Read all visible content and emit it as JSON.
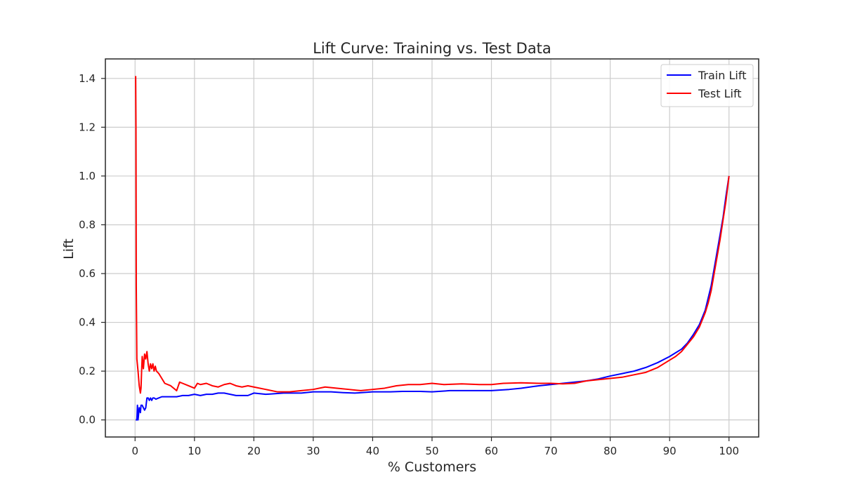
{
  "chart_data": {
    "type": "line",
    "title": "Lift Curve: Training vs. Test Data",
    "xlabel": "% Customers",
    "ylabel": "Lift",
    "xlim": [
      -5,
      105
    ],
    "ylim": [
      -0.07,
      1.48
    ],
    "xticks": [
      0,
      10,
      20,
      30,
      40,
      50,
      60,
      70,
      80,
      90,
      100
    ],
    "yticks": [
      0.0,
      0.2,
      0.4,
      0.6,
      0.8,
      1.0,
      1.2,
      1.4
    ],
    "grid": true,
    "legend_position": "top-right",
    "series": [
      {
        "name": "Train Lift",
        "color": "#0000ff",
        "x": [
          0.1,
          0.3,
          0.4,
          0.5,
          0.7,
          0.9,
          1.0,
          1.2,
          1.4,
          1.6,
          1.8,
          2.0,
          2.2,
          2.4,
          2.6,
          2.8,
          3.0,
          3.2,
          3.5,
          4.0,
          4.5,
          5.0,
          6.0,
          7.0,
          8.0,
          9.0,
          10.0,
          11.0,
          12.0,
          13.0,
          14.0,
          15.0,
          16.0,
          17.0,
          18.0,
          19.0,
          20.0,
          22.0,
          25.0,
          28.0,
          30.0,
          33.0,
          35.0,
          37.0,
          40.0,
          43.0,
          45.0,
          48.0,
          50.0,
          53.0,
          55.0,
          58.0,
          60.0,
          63.0,
          65.0,
          68.0,
          70.0,
          72.0,
          74.0,
          76.0,
          78.0,
          80.0,
          82.0,
          84.0,
          86.0,
          88.0,
          90.0,
          91.0,
          92.0,
          93.0,
          94.0,
          95.0,
          95.5,
          96.0,
          96.5,
          97.0,
          97.5,
          98.0,
          98.5,
          99.0,
          99.5,
          100.0
        ],
        "y": [
          0.0,
          0.0,
          0.06,
          0.0,
          0.05,
          0.03,
          0.06,
          0.06,
          0.05,
          0.04,
          0.05,
          0.09,
          0.09,
          0.08,
          0.09,
          0.08,
          0.09,
          0.09,
          0.085,
          0.09,
          0.095,
          0.095,
          0.095,
          0.095,
          0.1,
          0.1,
          0.105,
          0.1,
          0.105,
          0.105,
          0.11,
          0.11,
          0.105,
          0.1,
          0.1,
          0.1,
          0.11,
          0.105,
          0.11,
          0.11,
          0.115,
          0.115,
          0.112,
          0.11,
          0.115,
          0.115,
          0.117,
          0.117,
          0.115,
          0.12,
          0.12,
          0.12,
          0.12,
          0.125,
          0.13,
          0.14,
          0.145,
          0.15,
          0.155,
          0.16,
          0.168,
          0.18,
          0.19,
          0.2,
          0.215,
          0.235,
          0.26,
          0.275,
          0.29,
          0.315,
          0.35,
          0.39,
          0.42,
          0.45,
          0.5,
          0.55,
          0.62,
          0.69,
          0.76,
          0.83,
          0.92,
          1.0
        ]
      },
      {
        "name": "Test Lift",
        "color": "#ff0000",
        "x": [
          0.1,
          0.15,
          0.2,
          0.3,
          0.5,
          0.7,
          0.9,
          1.0,
          1.1,
          1.2,
          1.4,
          1.6,
          1.8,
          2.0,
          2.2,
          2.4,
          2.6,
          2.8,
          3.0,
          3.2,
          3.4,
          3.6,
          4.0,
          4.5,
          5.0,
          6.0,
          7.0,
          7.5,
          8.0,
          9.0,
          10.0,
          10.5,
          11.0,
          12.0,
          13.0,
          14.0,
          15.0,
          16.0,
          17.0,
          18.0,
          19.0,
          20.0,
          22.0,
          24.0,
          26.0,
          28.0,
          30.0,
          32.0,
          34.0,
          36.0,
          38.0,
          40.0,
          42.0,
          44.0,
          46.0,
          48.0,
          50.0,
          52.0,
          55.0,
          58.0,
          60.0,
          62.0,
          65.0,
          68.0,
          70.0,
          72.0,
          74.0,
          76.0,
          78.0,
          80.0,
          82.0,
          84.0,
          86.0,
          88.0,
          90.0,
          91.0,
          92.0,
          93.0,
          94.0,
          95.0,
          95.5,
          96.0,
          96.5,
          97.0,
          97.5,
          98.0,
          98.5,
          99.0,
          99.5,
          100.0
        ],
        "y": [
          1.41,
          1.2,
          0.55,
          0.25,
          0.2,
          0.14,
          0.11,
          0.13,
          0.2,
          0.26,
          0.21,
          0.27,
          0.25,
          0.28,
          0.23,
          0.2,
          0.23,
          0.21,
          0.23,
          0.2,
          0.22,
          0.2,
          0.19,
          0.17,
          0.15,
          0.14,
          0.12,
          0.155,
          0.15,
          0.14,
          0.13,
          0.15,
          0.145,
          0.15,
          0.14,
          0.135,
          0.145,
          0.15,
          0.14,
          0.135,
          0.14,
          0.135,
          0.125,
          0.115,
          0.115,
          0.12,
          0.125,
          0.135,
          0.13,
          0.125,
          0.12,
          0.125,
          0.13,
          0.14,
          0.145,
          0.145,
          0.15,
          0.145,
          0.148,
          0.145,
          0.145,
          0.15,
          0.152,
          0.15,
          0.15,
          0.148,
          0.15,
          0.16,
          0.165,
          0.17,
          0.175,
          0.185,
          0.195,
          0.215,
          0.245,
          0.26,
          0.28,
          0.31,
          0.34,
          0.38,
          0.41,
          0.44,
          0.48,
          0.53,
          0.6,
          0.67,
          0.74,
          0.82,
          0.9,
          1.0
        ]
      }
    ]
  }
}
